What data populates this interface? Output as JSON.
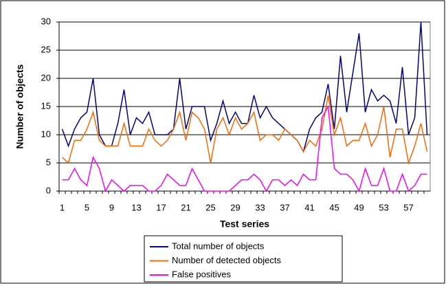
{
  "chart_data": {
    "type": "line",
    "x_label": "Test series",
    "y_label": "Number of objects",
    "categories": [
      1,
      null,
      null,
      null,
      5,
      null,
      null,
      null,
      9,
      null,
      null,
      null,
      13,
      null,
      null,
      null,
      17,
      null,
      null,
      null,
      21,
      null,
      null,
      null,
      25,
      null,
      null,
      null,
      29,
      null,
      null,
      null,
      33,
      null,
      null,
      null,
      37,
      null,
      null,
      null,
      41,
      null,
      null,
      null,
      45,
      null,
      null,
      null,
      49,
      null,
      null,
      null,
      53,
      null,
      null,
      null,
      57,
      null,
      null,
      null
    ],
    "series": [
      {
        "name": "Total number of objects",
        "color": "#000080",
        "values": [
          11,
          8,
          11,
          13,
          14,
          20,
          10,
          8,
          8,
          12,
          18,
          10,
          13,
          12,
          14,
          10,
          10,
          10,
          11,
          20,
          11,
          15,
          15,
          15,
          9,
          12,
          16,
          12,
          14,
          12,
          12,
          17,
          13,
          15,
          13,
          12,
          11,
          10,
          9,
          7,
          11,
          13,
          14,
          19,
          11,
          24,
          14,
          21,
          28,
          14,
          18,
          16,
          17,
          16,
          12,
          22,
          10,
          13,
          30,
          10
        ]
      },
      {
        "name": "Number of detected objects",
        "color": "#ff6600",
        "values": [
          6,
          5,
          9,
          9,
          11,
          14,
          9,
          8,
          8,
          8,
          12,
          8,
          8,
          8,
          11,
          9,
          8,
          9,
          11,
          14,
          9,
          14,
          13,
          11,
          5,
          11,
          13,
          10,
          13,
          11,
          12,
          14,
          9,
          10,
          10,
          9,
          11,
          10,
          9,
          7,
          9,
          8,
          11,
          17,
          10,
          13,
          8,
          9,
          9,
          12,
          8,
          10,
          15,
          6,
          11,
          11,
          5,
          8,
          12,
          7
        ]
      },
      {
        "name": "False positives",
        "color": "#ff00ff",
        "values": [
          2,
          2,
          4,
          2,
          1,
          6,
          4,
          0,
          2,
          1,
          0,
          1,
          1,
          1,
          0,
          0,
          1,
          3,
          2,
          1,
          1,
          4,
          2,
          0,
          0,
          0,
          0,
          0,
          1,
          2,
          2,
          3,
          2,
          0,
          2,
          2,
          1,
          2,
          1,
          3,
          2,
          2,
          13,
          15,
          4,
          3,
          3,
          2,
          0,
          4,
          1,
          1,
          4,
          0,
          0,
          3,
          0,
          1,
          3,
          3
        ]
      }
    ],
    "ylim": [
      0,
      30
    ],
    "yticks": [
      0,
      5,
      10,
      15,
      20,
      25,
      30
    ],
    "grid": true
  }
}
